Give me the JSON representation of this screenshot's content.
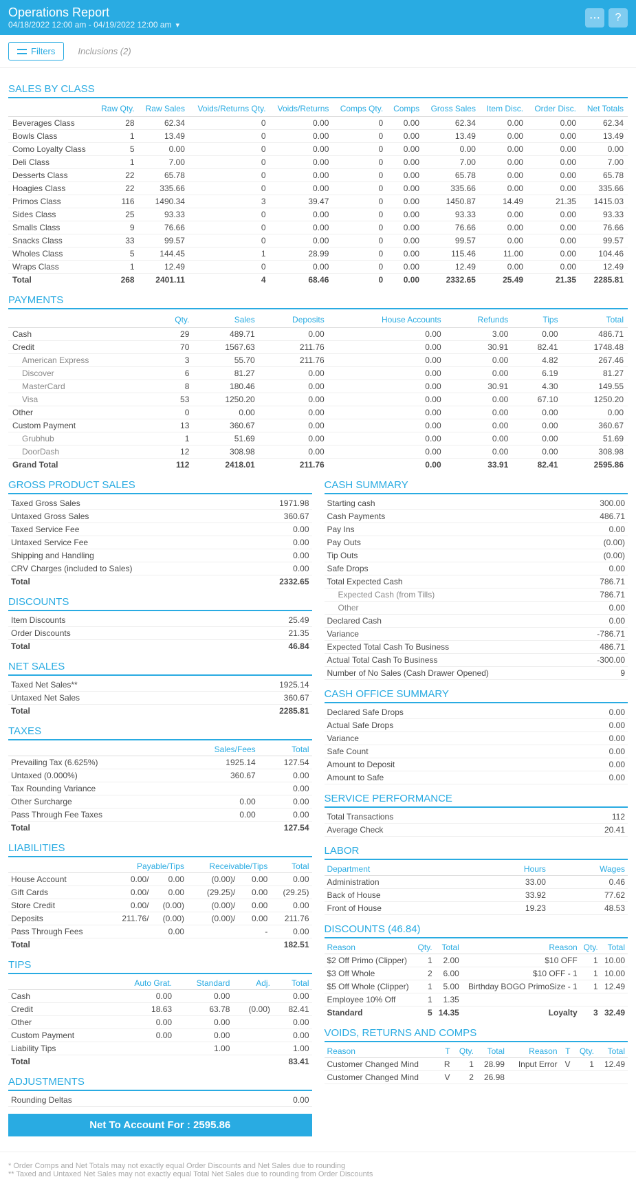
{
  "header": {
    "title": "Operations Report",
    "date": "04/18/2022 12:00 am - 04/19/2022 12:00 am"
  },
  "toolbar": {
    "filters": "Filters",
    "inclusions": "Inclusions (2)"
  },
  "sections": {
    "salesByClass": "SALES BY CLASS",
    "payments": "PAYMENTS",
    "grossProduct": "GROSS PRODUCT SALES",
    "discounts": "DISCOUNTS",
    "netSales": "NET SALES",
    "taxes": "TAXES",
    "liabilities": "LIABILITIES",
    "tips": "TIPS",
    "adjustments": "ADJUSTMENTS",
    "cashSummary": "CASH SUMMARY",
    "cashOffice": "CASH OFFICE SUMMARY",
    "servicePerf": "SERVICE PERFORMANCE",
    "labor": "LABOR",
    "discountsDetail": "DISCOUNTS (46.84)",
    "voidsReturns": "VOIDS, RETURNS AND COMPS"
  },
  "salesByClass": {
    "headers": [
      "",
      "Raw Qty.",
      "Raw Sales",
      "Voids/Returns Qty.",
      "Voids/Returns",
      "Comps Qty.",
      "Comps",
      "Gross Sales",
      "Item Disc.",
      "Order Disc.",
      "Net Totals"
    ],
    "rows": [
      [
        "Beverages Class",
        "28",
        "62.34",
        "0",
        "0.00",
        "0",
        "0.00",
        "62.34",
        "0.00",
        "0.00",
        "62.34"
      ],
      [
        "Bowls Class",
        "1",
        "13.49",
        "0",
        "0.00",
        "0",
        "0.00",
        "13.49",
        "0.00",
        "0.00",
        "13.49"
      ],
      [
        "Como Loyalty Class",
        "5",
        "0.00",
        "0",
        "0.00",
        "0",
        "0.00",
        "0.00",
        "0.00",
        "0.00",
        "0.00"
      ],
      [
        "Deli Class",
        "1",
        "7.00",
        "0",
        "0.00",
        "0",
        "0.00",
        "7.00",
        "0.00",
        "0.00",
        "7.00"
      ],
      [
        "Desserts Class",
        "22",
        "65.78",
        "0",
        "0.00",
        "0",
        "0.00",
        "65.78",
        "0.00",
        "0.00",
        "65.78"
      ],
      [
        "Hoagies Class",
        "22",
        "335.66",
        "0",
        "0.00",
        "0",
        "0.00",
        "335.66",
        "0.00",
        "0.00",
        "335.66"
      ],
      [
        "Primos Class",
        "116",
        "1490.34",
        "3",
        "39.47",
        "0",
        "0.00",
        "1450.87",
        "14.49",
        "21.35",
        "1415.03"
      ],
      [
        "Sides Class",
        "25",
        "93.33",
        "0",
        "0.00",
        "0",
        "0.00",
        "93.33",
        "0.00",
        "0.00",
        "93.33"
      ],
      [
        "Smalls Class",
        "9",
        "76.66",
        "0",
        "0.00",
        "0",
        "0.00",
        "76.66",
        "0.00",
        "0.00",
        "76.66"
      ],
      [
        "Snacks Class",
        "33",
        "99.57",
        "0",
        "0.00",
        "0",
        "0.00",
        "99.57",
        "0.00",
        "0.00",
        "99.57"
      ],
      [
        "Wholes Class",
        "5",
        "144.45",
        "1",
        "28.99",
        "0",
        "0.00",
        "115.46",
        "11.00",
        "0.00",
        "104.46"
      ],
      [
        "Wraps Class",
        "1",
        "12.49",
        "0",
        "0.00",
        "0",
        "0.00",
        "12.49",
        "0.00",
        "0.00",
        "12.49"
      ]
    ],
    "total": [
      "Total",
      "268",
      "2401.11",
      "4",
      "68.46",
      "0",
      "0.00",
      "2332.65",
      "25.49",
      "21.35",
      "2285.81"
    ]
  },
  "payments": {
    "headers": [
      "",
      "Qty.",
      "Sales",
      "Deposits",
      "House Accounts",
      "Refunds",
      "Tips",
      "Total"
    ],
    "rows": [
      {
        "c": [
          "Cash",
          "29",
          "489.71",
          "0.00",
          "0.00",
          "3.00",
          "0.00",
          "486.71"
        ],
        "i": 0
      },
      {
        "c": [
          "Credit",
          "70",
          "1567.63",
          "211.76",
          "0.00",
          "30.91",
          "82.41",
          "1748.48"
        ],
        "i": 0
      },
      {
        "c": [
          "American Express",
          "3",
          "55.70",
          "211.76",
          "0.00",
          "0.00",
          "4.82",
          "267.46"
        ],
        "i": 1
      },
      {
        "c": [
          "Discover",
          "6",
          "81.27",
          "0.00",
          "0.00",
          "0.00",
          "6.19",
          "81.27"
        ],
        "i": 1
      },
      {
        "c": [
          "MasterCard",
          "8",
          "180.46",
          "0.00",
          "0.00",
          "30.91",
          "4.30",
          "149.55"
        ],
        "i": 1
      },
      {
        "c": [
          "Visa",
          "53",
          "1250.20",
          "0.00",
          "0.00",
          "0.00",
          "67.10",
          "1250.20"
        ],
        "i": 1
      },
      {
        "c": [
          "Other",
          "0",
          "0.00",
          "0.00",
          "0.00",
          "0.00",
          "0.00",
          "0.00"
        ],
        "i": 0
      },
      {
        "c": [
          "Custom Payment",
          "13",
          "360.67",
          "0.00",
          "0.00",
          "0.00",
          "0.00",
          "360.67"
        ],
        "i": 0
      },
      {
        "c": [
          "Grubhub",
          "1",
          "51.69",
          "0.00",
          "0.00",
          "0.00",
          "0.00",
          "51.69"
        ],
        "i": 1
      },
      {
        "c": [
          "DoorDash",
          "12",
          "308.98",
          "0.00",
          "0.00",
          "0.00",
          "0.00",
          "308.98"
        ],
        "i": 1
      }
    ],
    "total": [
      "Grand Total",
      "112",
      "2418.01",
      "211.76",
      "0.00",
      "33.91",
      "82.41",
      "2595.86"
    ]
  },
  "grossProduct": {
    "rows": [
      [
        "Taxed Gross Sales",
        "1971.98"
      ],
      [
        "Untaxed Gross Sales",
        "360.67"
      ],
      [
        "Taxed Service Fee",
        "0.00"
      ],
      [
        "Untaxed Service Fee",
        "0.00"
      ],
      [
        "Shipping and Handling",
        "0.00"
      ],
      [
        "CRV Charges (included to Sales)",
        "0.00"
      ]
    ],
    "total": [
      "Total",
      "2332.65"
    ]
  },
  "discounts": {
    "rows": [
      [
        "Item Discounts",
        "25.49"
      ],
      [
        "Order Discounts",
        "21.35"
      ]
    ],
    "total": [
      "Total",
      "46.84"
    ]
  },
  "netSales": {
    "rows": [
      [
        "Taxed Net Sales**",
        "1925.14"
      ],
      [
        "Untaxed Net Sales",
        "360.67"
      ]
    ],
    "total": [
      "Total",
      "2285.81"
    ]
  },
  "taxes": {
    "headers": [
      "",
      "Sales/Fees",
      "Total"
    ],
    "rows": [
      [
        "Prevailing Tax (6.625%)",
        "1925.14",
        "127.54"
      ],
      [
        "Untaxed (0.000%)",
        "360.67",
        "0.00"
      ],
      [
        "Tax Rounding Variance",
        "",
        "0.00"
      ],
      [
        "Other Surcharge",
        "0.00",
        "0.00"
      ],
      [
        "Pass Through Fee Taxes",
        "0.00",
        "0.00"
      ]
    ],
    "total": [
      "Total",
      "",
      "127.54"
    ]
  },
  "liabilities": {
    "headers": [
      "",
      "Payable/Tips",
      "Receivable/Tips",
      "Total"
    ],
    "rows": [
      [
        "House Account",
        "0.00/",
        "0.00",
        "(0.00)/",
        "0.00",
        "0.00"
      ],
      [
        "Gift Cards",
        "0.00/",
        "0.00",
        "(29.25)/",
        "0.00",
        "(29.25)"
      ],
      [
        "Store Credit",
        "0.00/",
        "(0.00)",
        "(0.00)/",
        "0.00",
        "0.00"
      ],
      [
        "Deposits",
        "211.76/",
        "(0.00)",
        "(0.00)/",
        "0.00",
        "211.76"
      ],
      [
        "Pass Through Fees",
        "",
        "0.00",
        "",
        "-",
        "0.00"
      ]
    ],
    "total": [
      "Total",
      "",
      "",
      "",
      "",
      "182.51"
    ]
  },
  "tips": {
    "headers": [
      "",
      "Auto Grat.",
      "Standard",
      "Adj.",
      "Total"
    ],
    "rows": [
      [
        "Cash",
        "0.00",
        "0.00",
        "",
        "0.00"
      ],
      [
        "Credit",
        "18.63",
        "63.78",
        "(0.00)",
        "82.41"
      ],
      [
        "Other",
        "0.00",
        "0.00",
        "",
        "0.00"
      ],
      [
        "Custom Payment",
        "0.00",
        "0.00",
        "",
        "0.00"
      ],
      [
        "Liability Tips",
        "",
        "1.00",
        "",
        "1.00"
      ]
    ],
    "total": [
      "Total",
      "",
      "",
      "",
      "83.41"
    ]
  },
  "adjustments": {
    "rows": [
      [
        "Rounding Deltas",
        "0.00"
      ]
    ]
  },
  "netAccount": "Net To Account For : 2595.86",
  "cashSummary": {
    "rows": [
      [
        "Starting cash",
        "300.00"
      ],
      [
        "Cash Payments",
        "486.71"
      ],
      [
        "Pay Ins",
        "0.00"
      ],
      [
        "Pay Outs",
        "(0.00)"
      ],
      [
        "Tip Outs",
        "(0.00)"
      ],
      [
        "Safe Drops",
        "0.00"
      ],
      [
        "Total Expected Cash",
        "786.71"
      ]
    ],
    "indent": [
      [
        "Expected Cash (from Tills)",
        "786.71"
      ],
      [
        "Other",
        "0.00"
      ]
    ],
    "rows2": [
      [
        "Declared Cash",
        "0.00"
      ],
      [
        "Variance",
        "-786.71"
      ],
      [
        "Expected Total Cash To Business",
        "486.71"
      ],
      [
        "Actual Total Cash To Business",
        "-300.00"
      ],
      [
        "Number of No Sales (Cash Drawer Opened)",
        "9"
      ]
    ]
  },
  "cashOffice": {
    "rows": [
      [
        "Declared Safe Drops",
        "0.00"
      ],
      [
        "Actual Safe Drops",
        "0.00"
      ],
      [
        "Variance",
        "0.00"
      ],
      [
        "Safe Count",
        "0.00"
      ],
      [
        "Amount to Deposit",
        "0.00"
      ],
      [
        "Amount to Safe",
        "0.00"
      ]
    ]
  },
  "servicePerf": {
    "rows": [
      [
        "Total Transactions",
        "112"
      ],
      [
        "Average Check",
        "20.41"
      ]
    ]
  },
  "labor": {
    "headers": [
      "Department",
      "Hours",
      "Wages"
    ],
    "rows": [
      [
        "Administration",
        "33.00",
        "0.46"
      ],
      [
        "Back of House",
        "33.92",
        "77.62"
      ],
      [
        "Front of House",
        "19.23",
        "48.53"
      ]
    ]
  },
  "discountsDetail": {
    "headers": [
      "Reason",
      "Qty.",
      "Total",
      "Reason",
      "Qty.",
      "Total"
    ],
    "rows": [
      [
        "$2 Off Primo (Clipper)",
        "1",
        "2.00",
        "$10 OFF",
        "1",
        "10.00"
      ],
      [
        "$3 Off Whole",
        "2",
        "6.00",
        "$10 OFF - 1",
        "1",
        "10.00"
      ],
      [
        "$5 Off Whole (Clipper)",
        "1",
        "5.00",
        "Birthday BOGO PrimoSize - 1",
        "1",
        "12.49"
      ],
      [
        "Employee 10% Off",
        "1",
        "1.35",
        "",
        "",
        ""
      ]
    ],
    "totals": {
      "left": [
        "Standard",
        "5",
        "14.35"
      ],
      "right": [
        "Loyalty",
        "3",
        "32.49"
      ]
    }
  },
  "voidsReturns": {
    "headers": [
      "Reason",
      "T",
      "Qty.",
      "Total",
      "Reason",
      "T",
      "Qty.",
      "Total"
    ],
    "rows": [
      [
        "Customer Changed Mind",
        "R",
        "1",
        "28.99",
        "Input Error",
        "V",
        "1",
        "12.49"
      ],
      [
        "Customer Changed Mind",
        "V",
        "2",
        "26.98",
        "",
        "",
        "",
        ""
      ]
    ]
  },
  "footnotes": {
    "l1": "* Order Comps and Net Totals may not exactly equal Order Discounts and Net Sales due to rounding",
    "l2": "** Taxed and Untaxed Net Sales may not exactly equal Total Net Sales due to rounding from Order Discounts"
  }
}
